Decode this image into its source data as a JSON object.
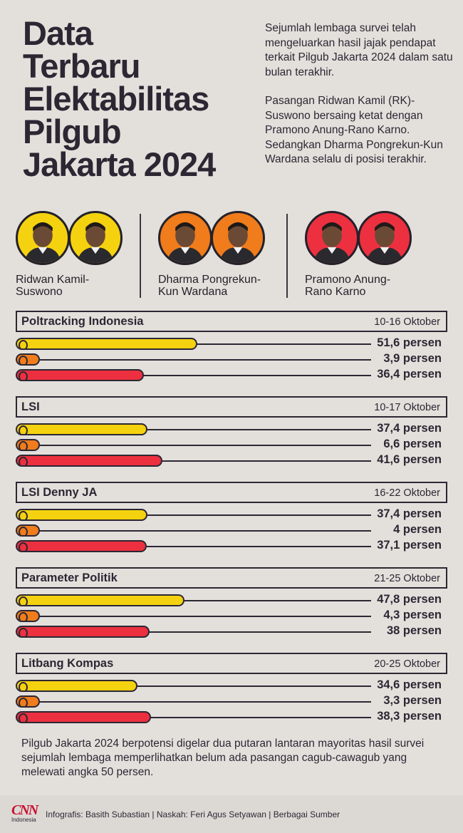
{
  "title_lines": [
    "Data",
    "Terbaru",
    "Elektabilitas",
    "Pilgub",
    "Jakarta 2024"
  ],
  "intro": {
    "p1": "Sejumlah lembaga survei telah mengeluarkan hasil jajak pendapat terkait Pilgub Jakarta 2024 dalam satu bulan terakhir.",
    "p2": "Pasangan Ridwan Kamil (RK)-Suswono bersaing ketat dengan Pramono Anung-Rano Karno. Sedangkan Dharma Pongrekun-Kun Wardana selalu di posisi terakhir."
  },
  "candidates": [
    {
      "name": "Ridwan Kamil-\nSuswono",
      "color": "#f5d20f"
    },
    {
      "name": "Dharma Pongrekun-\nKun Wardana",
      "color": "#f07c1c"
    },
    {
      "name": "Pramono Anung-\nRano Karno",
      "color": "#ec3040"
    }
  ],
  "chart_data": {
    "type": "bar",
    "orientation": "horizontal",
    "unit": "persen",
    "xlim": [
      0,
      100
    ],
    "series_names": [
      "Ridwan Kamil-Suswono",
      "Dharma Pongrekun-Kun Wardana",
      "Pramono Anung-Rano Karno"
    ],
    "colors": [
      "#f5d20f",
      "#f07c1c",
      "#ec3040"
    ],
    "surveys": [
      {
        "name": "Poltracking Indonesia",
        "date": "10-16 Oktober",
        "values": [
          51.6,
          3.9,
          36.4
        ],
        "labels": [
          "51,6 persen",
          "3,9 persen",
          "36,4 persen"
        ]
      },
      {
        "name": "LSI",
        "date": "10-17 Oktober",
        "values": [
          37.4,
          6.6,
          41.6
        ],
        "labels": [
          "37,4 persen",
          "6,6 persen",
          "41,6 persen"
        ]
      },
      {
        "name": "LSI Denny JA",
        "date": "16-22 Oktober",
        "values": [
          37.4,
          4,
          37.1
        ],
        "labels": [
          "37,4 persen",
          "4 persen",
          "37,1 persen"
        ]
      },
      {
        "name": "Parameter Politik",
        "date": "21-25 Oktober",
        "values": [
          47.8,
          4.3,
          38
        ],
        "labels": [
          "47,8 persen",
          "4,3 persen",
          "38 persen"
        ]
      },
      {
        "name": "Litbang Kompas",
        "date": "20-25 Oktober",
        "values": [
          34.6,
          3.3,
          38.3
        ],
        "labels": [
          "34,6 persen",
          "3,3 persen",
          "38,3 persen"
        ]
      }
    ]
  },
  "footer_text": "Pilgub Jakarta 2024 berpotensi digelar dua putaran lantaran mayoritas hasil survei sejumlah lembaga memperlihatkan belum ada pasangan cagub-cawagub yang melewati angka 50 persen.",
  "credits": {
    "logo_mark": "CNN",
    "logo_sub": "Indonesia",
    "text": "Infografis: Basith Subastian | Naskah: Feri Agus Setyawan | Berbagai Sumber"
  }
}
